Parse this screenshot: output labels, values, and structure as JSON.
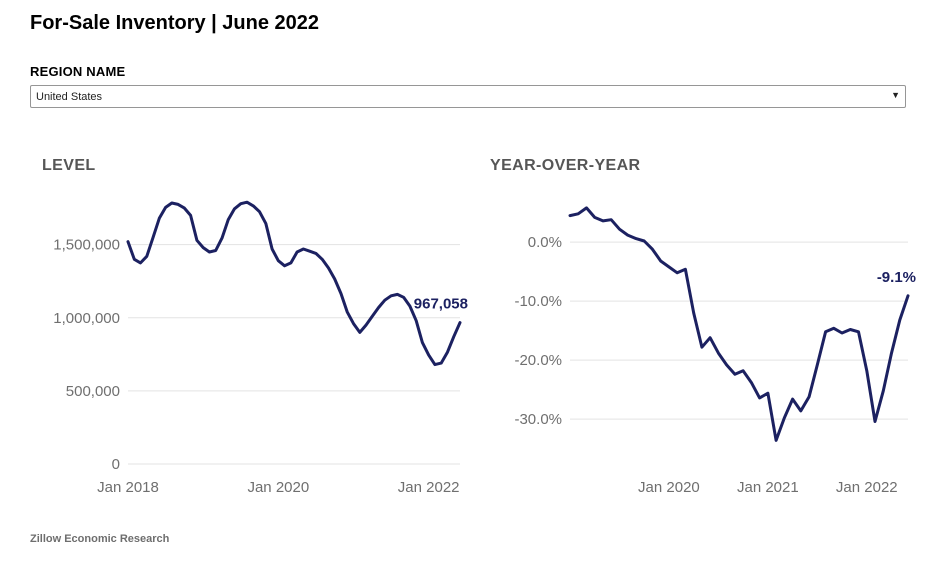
{
  "page": {
    "title": "For-Sale Inventory | June 2022",
    "region_label": "REGION NAME",
    "region_value": "United States",
    "footer": "Zillow Economic Research"
  },
  "icons": {
    "dropdown_caret": "▼"
  },
  "colors": {
    "line": "#1c2161",
    "annotation": "#1c2161",
    "grid": "#e3e3e3",
    "tick": "#6f6f6f",
    "chart_title": "#565656"
  },
  "chart_data": [
    {
      "type": "line",
      "title": "LEVEL",
      "values": [
        1520000,
        1400000,
        1375000,
        1420000,
        1550000,
        1680000,
        1755000,
        1785000,
        1775000,
        1750000,
        1700000,
        1530000,
        1480000,
        1450000,
        1460000,
        1545000,
        1670000,
        1745000,
        1780000,
        1790000,
        1765000,
        1725000,
        1645000,
        1470000,
        1390000,
        1355000,
        1375000,
        1450000,
        1470000,
        1455000,
        1440000,
        1400000,
        1340000,
        1265000,
        1165000,
        1040000,
        960000,
        900000,
        950000,
        1010000,
        1070000,
        1120000,
        1150000,
        1160000,
        1140000,
        1080000,
        980000,
        830000,
        745000,
        680000,
        690000,
        765000,
        870000,
        967058
      ],
      "ylim": [
        0,
        1860000
      ],
      "yticks": [
        {
          "v": 0,
          "label": "0"
        },
        {
          "v": 500000,
          "label": "500,000"
        },
        {
          "v": 1000000,
          "label": "1,000,000"
        },
        {
          "v": 1500000,
          "label": "1,500,000"
        }
      ],
      "xticks": [
        {
          "i": 0,
          "label": "Jan 2018"
        },
        {
          "i": 24,
          "label": "Jan 2020"
        },
        {
          "i": 48,
          "label": "Jan 2022"
        }
      ],
      "annotation": "967,058",
      "grid": true,
      "legend": "none"
    },
    {
      "type": "line",
      "title": "YEAR-OVER-YEAR",
      "values": [
        4.5,
        4.8,
        5.8,
        4.2,
        3.6,
        3.8,
        2.2,
        1.2,
        0.6,
        0.2,
        -1.2,
        -3.2,
        -4.2,
        -5.2,
        -4.6,
        -12.0,
        -17.8,
        -16.2,
        -18.8,
        -20.8,
        -22.4,
        -21.8,
        -23.8,
        -26.4,
        -25.6,
        -33.6,
        -29.8,
        -26.6,
        -28.6,
        -26.2,
        -20.8,
        -15.2,
        -14.6,
        -15.4,
        -14.8,
        -15.2,
        -21.8,
        -30.4,
        -25.2,
        -18.8,
        -13.2,
        -9.1
      ],
      "ylim": [
        -37.6,
        8.5
      ],
      "yticks": [
        {
          "v": 0,
          "label": "0.0%"
        },
        {
          "v": -10,
          "label": "-10.0%"
        },
        {
          "v": -20,
          "label": "-20.0%"
        },
        {
          "v": -30,
          "label": "-30.0%"
        }
      ],
      "xticks": [
        {
          "i": 12,
          "label": "Jan 2020"
        },
        {
          "i": 24,
          "label": "Jan 2021"
        },
        {
          "i": 36,
          "label": "Jan 2022"
        }
      ],
      "annotation": "-9.1%",
      "grid": true,
      "legend": "none"
    }
  ]
}
